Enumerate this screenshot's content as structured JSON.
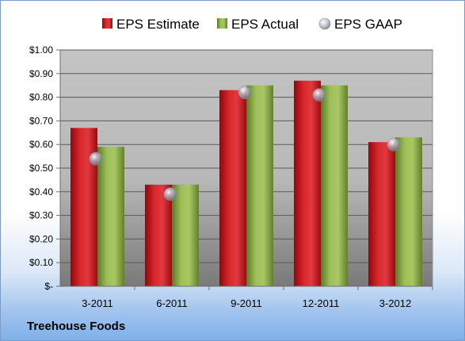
{
  "company": "Treehouse Foods",
  "colors": {
    "estimate": "#c8181e",
    "actual": "#8aac4a",
    "gaap": "#b8c2cc"
  },
  "chart_data": {
    "type": "bar",
    "categories": [
      "3-2011",
      "6-2011",
      "9-2011",
      "12-2011",
      "3-2012"
    ],
    "series": [
      {
        "name": "EPS Estimate",
        "values": [
          0.67,
          0.43,
          0.83,
          0.87,
          0.61
        ]
      },
      {
        "name": "EPS Actual",
        "values": [
          0.59,
          0.43,
          0.85,
          0.85,
          0.63
        ]
      },
      {
        "name": "EPS GAAP",
        "marker": "circle",
        "values": [
          0.54,
          0.39,
          0.82,
          0.81,
          0.6
        ]
      }
    ],
    "yticks": [
      "$-",
      "$0.10",
      "$0.20",
      "$0.30",
      "$0.40",
      "$0.50",
      "$0.60",
      "$0.70",
      "$0.80",
      "$0.90",
      "$1.00"
    ],
    "ylim": [
      0,
      1.0
    ],
    "grid": true,
    "legend": "top"
  }
}
